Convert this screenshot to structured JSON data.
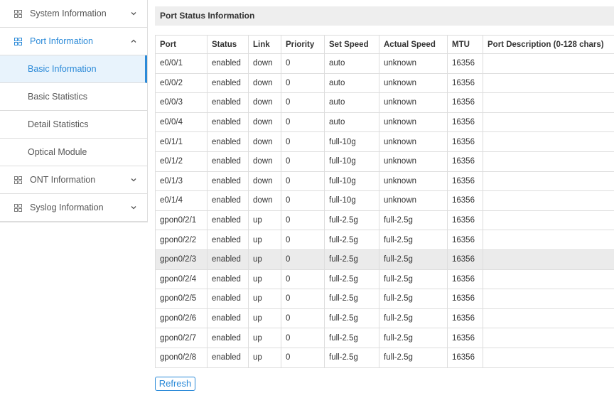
{
  "sidebar": {
    "items": [
      {
        "label": "System Information",
        "icon": true,
        "chevron": "down"
      },
      {
        "label": "Port Information",
        "icon": true,
        "chevron": "up",
        "open": true
      },
      {
        "label": "Basic Information",
        "sub": true,
        "selected": true
      },
      {
        "label": "Basic Statistics",
        "sub": true
      },
      {
        "label": "Detail Statistics",
        "sub": true
      },
      {
        "label": "Optical Module",
        "sub": true
      },
      {
        "label": "ONT Information",
        "icon": true,
        "chevron": "down"
      },
      {
        "label": "Syslog Information",
        "icon": true,
        "chevron": "down"
      }
    ]
  },
  "panel": {
    "title": "Port Status Information"
  },
  "table": {
    "headers": [
      "Port",
      "Status",
      "Link",
      "Priority",
      "Set Speed",
      "Actual Speed",
      "MTU",
      "Port Description (0-128 chars)"
    ],
    "rows": [
      [
        "e0/0/1",
        "enabled",
        "down",
        "0",
        "auto",
        "unknown",
        "16356",
        ""
      ],
      [
        "e0/0/2",
        "enabled",
        "down",
        "0",
        "auto",
        "unknown",
        "16356",
        ""
      ],
      [
        "e0/0/3",
        "enabled",
        "down",
        "0",
        "auto",
        "unknown",
        "16356",
        ""
      ],
      [
        "e0/0/4",
        "enabled",
        "down",
        "0",
        "auto",
        "unknown",
        "16356",
        ""
      ],
      [
        "e0/1/1",
        "enabled",
        "down",
        "0",
        "full-10g",
        "unknown",
        "16356",
        ""
      ],
      [
        "e0/1/2",
        "enabled",
        "down",
        "0",
        "full-10g",
        "unknown",
        "16356",
        ""
      ],
      [
        "e0/1/3",
        "enabled",
        "down",
        "0",
        "full-10g",
        "unknown",
        "16356",
        ""
      ],
      [
        "e0/1/4",
        "enabled",
        "down",
        "0",
        "full-10g",
        "unknown",
        "16356",
        ""
      ],
      [
        "gpon0/2/1",
        "enabled",
        "up",
        "0",
        "full-2.5g",
        "full-2.5g",
        "16356",
        ""
      ],
      [
        "gpon0/2/2",
        "enabled",
        "up",
        "0",
        "full-2.5g",
        "full-2.5g",
        "16356",
        ""
      ],
      [
        "gpon0/2/3",
        "enabled",
        "up",
        "0",
        "full-2.5g",
        "full-2.5g",
        "16356",
        ""
      ],
      [
        "gpon0/2/4",
        "enabled",
        "up",
        "0",
        "full-2.5g",
        "full-2.5g",
        "16356",
        ""
      ],
      [
        "gpon0/2/5",
        "enabled",
        "up",
        "0",
        "full-2.5g",
        "full-2.5g",
        "16356",
        ""
      ],
      [
        "gpon0/2/6",
        "enabled",
        "up",
        "0",
        "full-2.5g",
        "full-2.5g",
        "16356",
        ""
      ],
      [
        "gpon0/2/7",
        "enabled",
        "up",
        "0",
        "full-2.5g",
        "full-2.5g",
        "16356",
        ""
      ],
      [
        "gpon0/2/8",
        "enabled",
        "up",
        "0",
        "full-2.5g",
        "full-2.5g",
        "16356",
        ""
      ]
    ],
    "highlighted_row": 10
  },
  "button": {
    "label": "Refresh"
  }
}
